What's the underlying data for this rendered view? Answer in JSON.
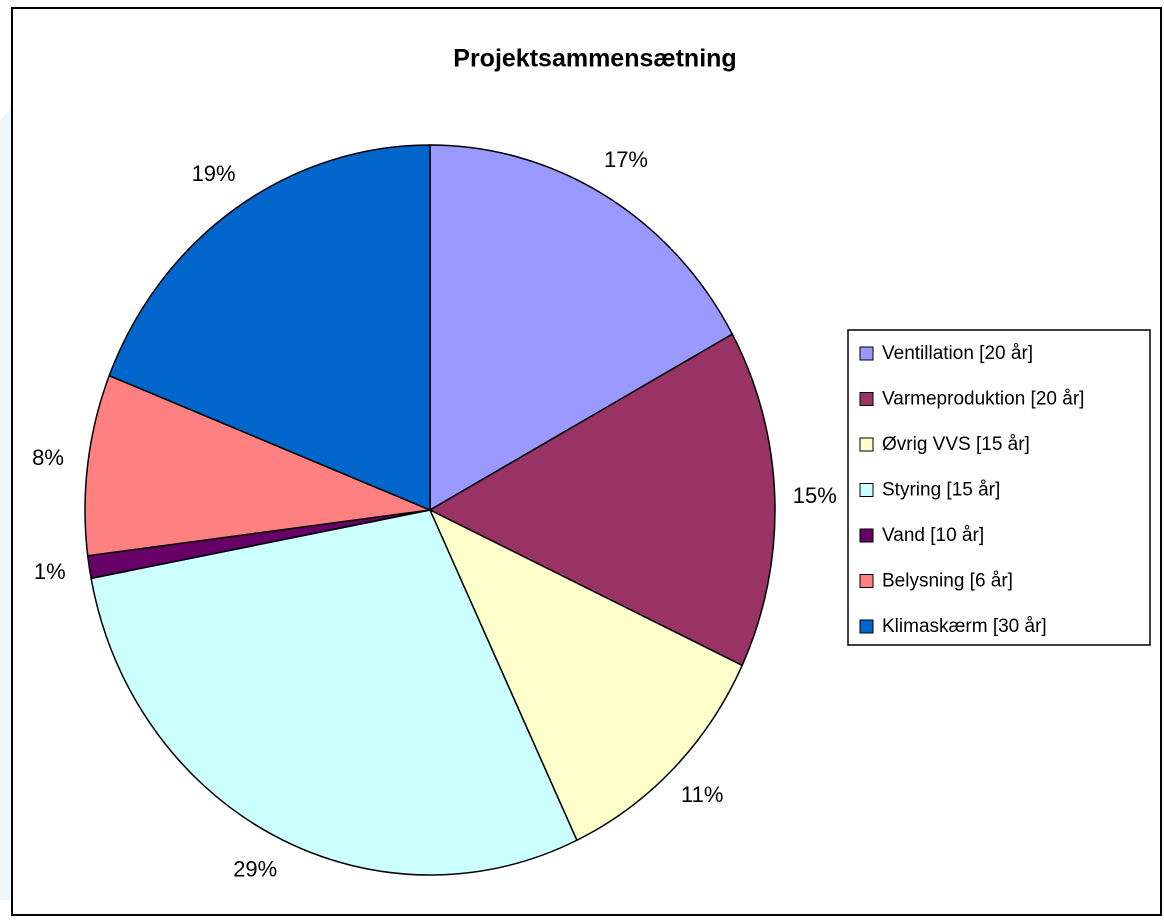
{
  "chart_data": {
    "type": "pie",
    "title": "Projektsammensætning",
    "categories": [
      "Ventillation [20 år]",
      "Varmeproduktion [20 år]",
      "Øvrig VVS [15 år]",
      "Styring [15 år]",
      "Vand [10 år]",
      "Belysning [6 år]",
      "Klimaskærm [30 år]"
    ],
    "values": [
      17,
      15,
      11,
      29,
      1,
      8,
      19
    ],
    "value_labels": [
      "17%",
      "15%",
      "11%",
      "29%",
      "1%",
      "8%",
      "19%"
    ],
    "colors": [
      "#9999ff",
      "#993366",
      "#ffffcc",
      "#ccffff",
      "#660066",
      "#ff8080",
      "#0066cc"
    ],
    "legend": "right"
  }
}
